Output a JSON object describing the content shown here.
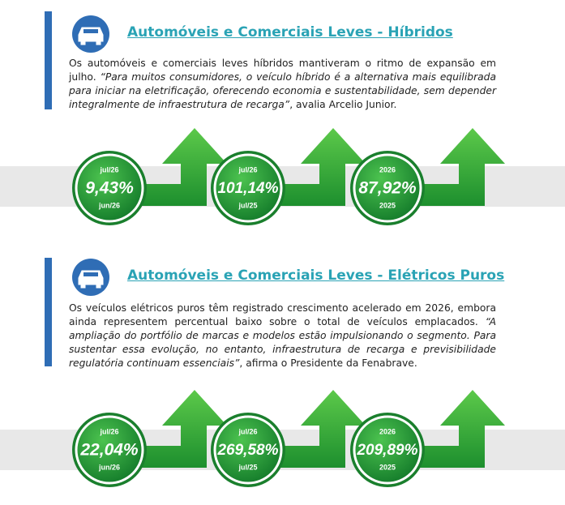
{
  "sections": [
    {
      "title": "Automóveis e Comerciais Leves - Híbridos",
      "paragraph": [
        {
          "text": "Os automóveis e comerciais leves híbridos mantiveram o ritmo de expansão em julho. ",
          "italic": false
        },
        {
          "text": "“Para muitos consumidores, o veículo híbrido é a alternativa mais equilibrada para iniciar na eletrificação, oferecendo economia e sustentabilidade, sem depender integralmente de infraestrutura de recarga”",
          "italic": true
        },
        {
          "text": ", avalia Arcelio Junior.",
          "italic": false
        }
      ],
      "metrics": [
        {
          "top": "jul/26",
          "value": "9,43%",
          "bottom": "jun/26"
        },
        {
          "top": "jul/26",
          "value": "101,14%",
          "bottom": "jul/25"
        },
        {
          "top": "2026",
          "value": "87,92%",
          "bottom": "2025"
        }
      ]
    },
    {
      "title": "Automóveis e Comerciais Leves - Elétricos Puros",
      "paragraph": [
        {
          "text": "Os veículos elétricos puros têm registrado crescimento acelerado em 2026, embora ainda representem percentual baixo sobre o total de veículos emplacados. ",
          "italic": false
        },
        {
          "text": "“A ampliação do portfólio de marcas e modelos estão impulsionando o segmento. Para sustentar essa evolução, no entanto, infraestrutura de recarga e previsibilidade regulatória continuam essenciais”",
          "italic": true
        },
        {
          "text": ", afirma o Presidente da Fenabrave.",
          "italic": false
        }
      ],
      "metrics": [
        {
          "top": "jul/26",
          "value": "22,04%",
          "bottom": "jun/26"
        },
        {
          "top": "jul/26",
          "value": "269,58%",
          "bottom": "jul/25"
        },
        {
          "top": "2026",
          "value": "209,89%",
          "bottom": "2025"
        }
      ]
    }
  ]
}
